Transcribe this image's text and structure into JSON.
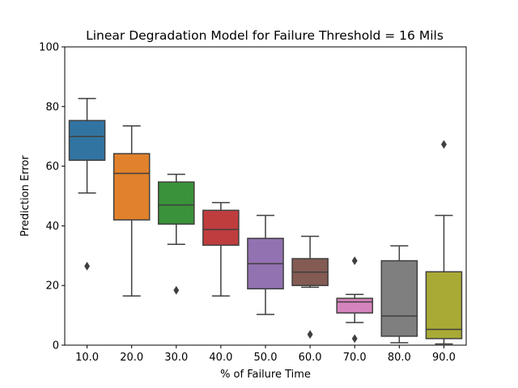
{
  "chart_data": {
    "type": "box",
    "title": "Linear Degradation Model for Failure Threshold = 16 Mils",
    "xlabel": "% of Failure Time",
    "ylabel": "Prediction Error",
    "ylim": [
      0,
      100
    ],
    "yticks": [
      "0",
      "20",
      "40",
      "60",
      "80",
      "100"
    ],
    "categories": [
      "10.0",
      "20.0",
      "30.0",
      "40.0",
      "50.0",
      "60.0",
      "70.0",
      "80.0",
      "90.0"
    ],
    "boxes": [
      {
        "category": "10.0",
        "color": "#3274a1",
        "whisker_low": 51.0,
        "q1": 62.0,
        "median": 70.0,
        "q3": 75.3,
        "whisker_high": 82.7,
        "outliers": [
          26.5
        ]
      },
      {
        "category": "20.0",
        "color": "#e1812c",
        "whisker_low": 16.5,
        "q1": 42.0,
        "median": 57.6,
        "q3": 64.2,
        "whisker_high": 73.5,
        "outliers": []
      },
      {
        "category": "30.0",
        "color": "#3a923a",
        "whisker_low": 33.8,
        "q1": 40.6,
        "median": 47.0,
        "q3": 54.7,
        "whisker_high": 57.3,
        "outliers": [
          18.4
        ]
      },
      {
        "category": "40.0",
        "color": "#c03d3e",
        "whisker_low": 16.5,
        "q1": 33.5,
        "median": 38.8,
        "q3": 45.2,
        "whisker_high": 47.8,
        "outliers": []
      },
      {
        "category": "50.0",
        "color": "#9372b2",
        "whisker_low": 10.3,
        "q1": 18.9,
        "median": 27.3,
        "q3": 35.8,
        "whisker_high": 43.5,
        "outliers": []
      },
      {
        "category": "60.0",
        "color": "#845b53",
        "whisker_low": 19.4,
        "q1": 20.0,
        "median": 24.5,
        "q3": 29.0,
        "whisker_high": 36.5,
        "outliers": [
          3.6
        ]
      },
      {
        "category": "70.0",
        "color": "#d684bd",
        "whisker_low": 7.6,
        "q1": 10.8,
        "median": 14.5,
        "q3": 15.7,
        "whisker_high": 17.0,
        "outliers": [
          28.3,
          2.2
        ]
      },
      {
        "category": "80.0",
        "color": "#7f7f7f",
        "whisker_low": 0.8,
        "q1": 3.0,
        "median": 9.8,
        "q3": 28.3,
        "whisker_high": 33.3,
        "outliers": []
      },
      {
        "category": "90.0",
        "color": "#a9aa35",
        "whisker_low": 0.4,
        "q1": 2.2,
        "median": 5.3,
        "q3": 24.6,
        "whisker_high": 43.5,
        "outliers": [
          67.3
        ]
      }
    ]
  }
}
